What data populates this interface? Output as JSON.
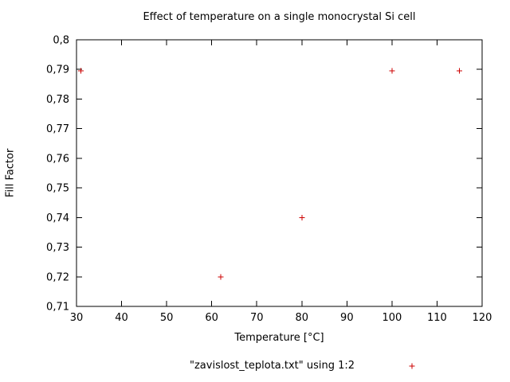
{
  "chart_data": {
    "type": "scatter",
    "title": "Effect of temperature on a single monocrystal Si cell",
    "xlabel": "Temperature [°C]",
    "ylabel": "Fill Factor",
    "xlim": [
      30,
      120
    ],
    "ylim": [
      0.71,
      0.8
    ],
    "grid": false,
    "legend_position": "below",
    "decimal_separator": ",",
    "axis_color": "#000000",
    "background_color": "#ffffff",
    "xticks": {
      "values": [
        30,
        40,
        50,
        60,
        70,
        80,
        90,
        100,
        110,
        120
      ],
      "labels": [
        "30",
        "40",
        "50",
        "60",
        "70",
        "80",
        "90",
        "100",
        "110",
        "120"
      ]
    },
    "yticks": {
      "values": [
        0.71,
        0.72,
        0.73,
        0.74,
        0.75,
        0.76,
        0.77,
        0.78,
        0.79,
        0.8
      ],
      "labels": [
        "0,71",
        "0,72",
        "0,73",
        "0,74",
        "0,75",
        "0,76",
        "0,77",
        "0,78",
        "0,79",
        "0,8"
      ]
    },
    "series": [
      {
        "name": "\"zavislost_teplota.txt\" using 1:2",
        "marker": "plus",
        "color": "#cc0000",
        "points": [
          [
            31,
            0.7895
          ],
          [
            62,
            0.72
          ],
          [
            80,
            0.74
          ],
          [
            100,
            0.7895
          ],
          [
            115,
            0.7895
          ]
        ]
      }
    ]
  }
}
